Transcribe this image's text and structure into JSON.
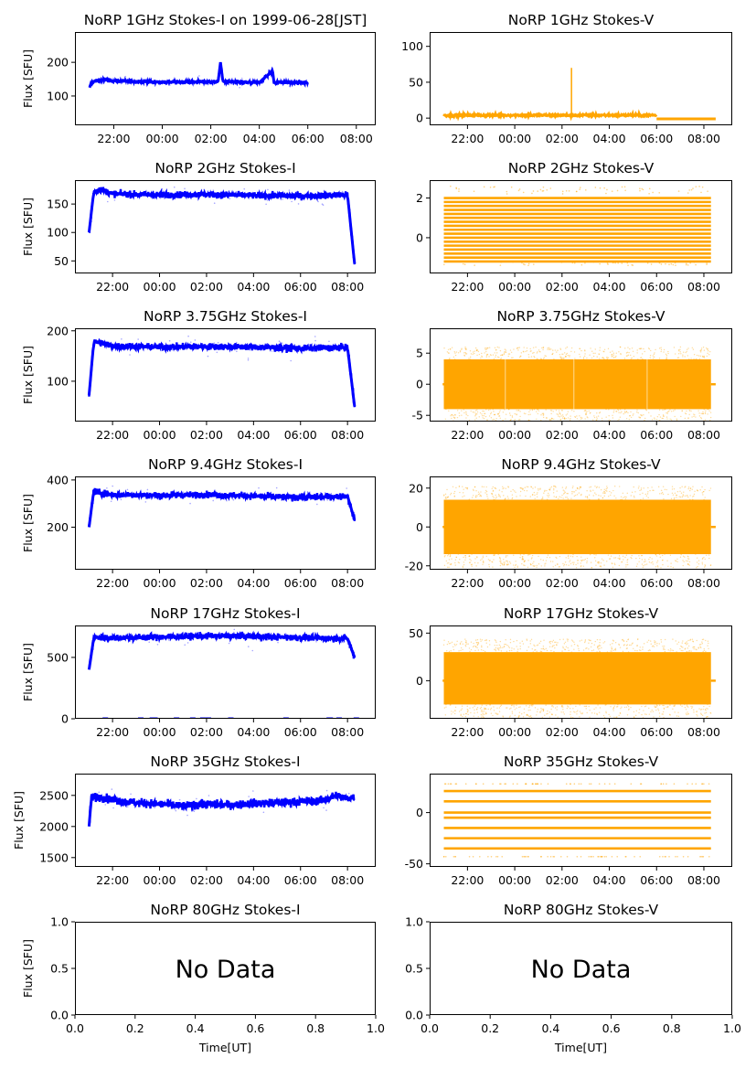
{
  "chart_data": [
    {
      "id": "1-I",
      "type": "scatter",
      "title": "NoRP 1GHz Stokes-I on 1999-06-28[JST]",
      "ylabel": "Flux [SFU]",
      "xlabel": "",
      "color": "#0000ff",
      "xlim": [
        20.4,
        32.8
      ],
      "ylim": [
        13,
        290
      ],
      "yticks": [
        100,
        200
      ],
      "xticks": [
        22,
        24,
        26,
        28,
        30,
        32
      ],
      "xtick_labels": [
        "22:00",
        "00:00",
        "02:00",
        "04:00",
        "06:00",
        "08:00"
      ],
      "series": [
        {
          "x": [
            21.0,
            21.1,
            21.6,
            22,
            23,
            24,
            25,
            26.3,
            26.4,
            26.5,
            27,
            28,
            28.55,
            28.6,
            29,
            30.0
          ],
          "y": [
            125,
            142,
            148,
            145,
            143,
            141,
            142,
            142,
            200,
            143,
            141,
            140,
            175,
            141,
            140,
            139
          ]
        }
      ]
    },
    {
      "id": "1-V",
      "type": "scatter",
      "title": "NoRP 1GHz Stokes-V",
      "ylabel": "",
      "xlabel": "",
      "color": "#ffa500",
      "xlim": [
        20.4,
        33.2
      ],
      "ylim": [
        -10,
        120
      ],
      "yticks": [
        0,
        50,
        100
      ],
      "xticks": [
        22,
        24,
        26,
        28,
        30,
        32
      ],
      "xtick_labels": [
        "22:00",
        "00:00",
        "02:00",
        "04:00",
        "06:00",
        "08:00"
      ],
      "series": [
        {
          "x": [
            21,
            22,
            24,
            26,
            26.4,
            26.5,
            28,
            30,
            30.1,
            32.5
          ],
          "y": [
            4,
            4,
            3,
            3,
            70,
            3,
            4,
            4,
            -1,
            -1
          ]
        }
      ]
    },
    {
      "id": "2-I",
      "type": "scatter",
      "title": "NoRP 2GHz Stokes-I",
      "ylabel": "Flux [SFU]",
      "xlabel": "",
      "color": "#0000ff",
      "xlim": [
        20.4,
        33.2
      ],
      "ylim": [
        28,
        192
      ],
      "yticks": [
        50,
        100,
        150
      ],
      "xticks": [
        22,
        24,
        26,
        28,
        30,
        32
      ],
      "xtick_labels": [
        "22:00",
        "00:00",
        "02:00",
        "04:00",
        "06:00",
        "08:00"
      ],
      "series": [
        {
          "x": [
            21,
            21.2,
            21.5,
            22,
            24,
            26,
            28,
            30,
            32,
            32.3
          ],
          "y": [
            100,
            172,
            176,
            168,
            166,
            167,
            165,
            164,
            166,
            45
          ]
        }
      ]
    },
    {
      "id": "2-V",
      "type": "scatter",
      "title": "NoRP 2GHz Stokes-V",
      "ylabel": "",
      "xlabel": "",
      "color": "#ffa500",
      "xlim": [
        20.4,
        33.2
      ],
      "ylim": [
        -1.8,
        2.9
      ],
      "yticks": [
        0,
        2
      ],
      "xticks": [
        22,
        24,
        26,
        28,
        30,
        32
      ],
      "xtick_labels": [
        "22:00",
        "00:00",
        "02:00",
        "04:00",
        "06:00",
        "08:00"
      ],
      "series": [
        {
          "x": [
            21,
            32.3
          ],
          "y": [
            -1.2,
            2.2
          ]
        }
      ]
    },
    {
      "id": "3-I",
      "type": "scatter",
      "title": "NoRP 3.75GHz Stokes-I",
      "ylabel": "Flux [SFU]",
      "xlabel": "",
      "color": "#0000ff",
      "xlim": [
        20.4,
        33.2
      ],
      "ylim": [
        20,
        205
      ],
      "yticks": [
        100,
        200
      ],
      "xticks": [
        22,
        24,
        26,
        28,
        30,
        32
      ],
      "xtick_labels": [
        "22:00",
        "00:00",
        "02:00",
        "04:00",
        "06:00",
        "08:00"
      ],
      "series": [
        {
          "x": [
            21,
            21.2,
            21.5,
            22,
            24,
            26,
            28,
            30,
            32,
            32.3
          ],
          "y": [
            72,
            178,
            176,
            170,
            168,
            169,
            168,
            165,
            167,
            50
          ]
        }
      ]
    },
    {
      "id": "3-V",
      "type": "scatter",
      "title": "NoRP 3.75GHz Stokes-V",
      "ylabel": "",
      "xlabel": "",
      "color": "#ffa500",
      "xlim": [
        20.4,
        33.2
      ],
      "ylim": [
        -6,
        9
      ],
      "yticks": [
        -5,
        0,
        5
      ],
      "xticks": [
        22,
        24,
        26,
        28,
        30,
        32
      ],
      "xtick_labels": [
        "22:00",
        "00:00",
        "02:00",
        "04:00",
        "06:00",
        "08:00"
      ],
      "series": [
        {
          "x": [
            21,
            32.3
          ],
          "y": [
            -4,
            4
          ]
        }
      ]
    },
    {
      "id": "9-I",
      "type": "scatter",
      "title": "NoRP 9.4GHz Stokes-I",
      "ylabel": "Flux [SFU]",
      "xlabel": "",
      "color": "#0000ff",
      "xlim": [
        20.4,
        33.2
      ],
      "ylim": [
        20,
        415
      ],
      "yticks": [
        200,
        400
      ],
      "xticks": [
        22,
        24,
        26,
        28,
        30,
        32
      ],
      "xtick_labels": [
        "22:00",
        "00:00",
        "02:00",
        "04:00",
        "06:00",
        "08:00"
      ],
      "series": [
        {
          "x": [
            21,
            21.2,
            21.5,
            22,
            24,
            26,
            28,
            30,
            32,
            32.3
          ],
          "y": [
            200,
            355,
            345,
            338,
            335,
            338,
            332,
            326,
            332,
            230
          ]
        }
      ]
    },
    {
      "id": "9-V",
      "type": "scatter",
      "title": "NoRP 9.4GHz Stokes-V",
      "ylabel": "",
      "xlabel": "",
      "color": "#ffa500",
      "xlim": [
        20.4,
        33.2
      ],
      "ylim": [
        -22,
        26
      ],
      "yticks": [
        -20,
        0,
        20
      ],
      "xticks": [
        22,
        24,
        26,
        28,
        30,
        32
      ],
      "xtick_labels": [
        "22:00",
        "00:00",
        "02:00",
        "04:00",
        "06:00",
        "08:00"
      ],
      "series": [
        {
          "x": [
            21,
            32.3
          ],
          "y": [
            -14,
            14
          ]
        }
      ]
    },
    {
      "id": "17-I",
      "type": "scatter",
      "title": "NoRP 17GHz Stokes-I",
      "ylabel": "Flux [SFU]",
      "xlabel": "",
      "color": "#0000ff",
      "xlim": [
        20.4,
        33.2
      ],
      "ylim": [
        0,
        760
      ],
      "yticks": [
        0,
        500
      ],
      "xticks": [
        22,
        24,
        26,
        28,
        30,
        32
      ],
      "xtick_labels": [
        "22:00",
        "00:00",
        "02:00",
        "04:00",
        "06:00",
        "08:00"
      ],
      "series": [
        {
          "x": [
            21,
            21.2,
            21.5,
            22,
            24,
            26,
            28,
            30,
            32,
            32.3
          ],
          "y": [
            400,
            660,
            665,
            660,
            665,
            675,
            672,
            660,
            655,
            500
          ]
        }
      ]
    },
    {
      "id": "17-V",
      "type": "scatter",
      "title": "NoRP 17GHz Stokes-V",
      "ylabel": "",
      "xlabel": "",
      "color": "#ffa500",
      "xlim": [
        20.4,
        33.2
      ],
      "ylim": [
        -40,
        58
      ],
      "yticks": [
        0,
        50
      ],
      "xticks": [
        22,
        24,
        26,
        28,
        30,
        32
      ],
      "xtick_labels": [
        "22:00",
        "00:00",
        "02:00",
        "04:00",
        "06:00",
        "08:00"
      ],
      "series": [
        {
          "x": [
            21,
            32.3
          ],
          "y": [
            -25,
            30
          ]
        }
      ]
    },
    {
      "id": "35-I",
      "type": "scatter",
      "title": "NoRP 35GHz Stokes-I",
      "ylabel": "Flux [SFU]",
      "xlabel": "",
      "color": "#0000ff",
      "xlim": [
        20.4,
        33.2
      ],
      "ylim": [
        1350,
        2850
      ],
      "yticks": [
        1500,
        2000,
        2500
      ],
      "xticks": [
        22,
        24,
        26,
        28,
        30,
        32
      ],
      "xtick_labels": [
        "22:00",
        "00:00",
        "02:00",
        "04:00",
        "06:00",
        "08:00"
      ],
      "series": [
        {
          "x": [
            21,
            21.1,
            21.5,
            22,
            23,
            24,
            25,
            26,
            27,
            28,
            29,
            30,
            31,
            31.5,
            32,
            32.3
          ],
          "y": [
            2000,
            2480,
            2470,
            2430,
            2380,
            2360,
            2330,
            2360,
            2350,
            2370,
            2380,
            2400,
            2420,
            2500,
            2450,
            2480
          ]
        }
      ]
    },
    {
      "id": "35-V",
      "type": "scatter",
      "title": "NoRP 35GHz Stokes-V",
      "ylabel": "",
      "xlabel": "",
      "color": "#ffa500",
      "xlim": [
        20.4,
        33.2
      ],
      "ylim": [
        -53,
        38
      ],
      "yticks": [
        -50,
        0
      ],
      "xticks": [
        22,
        24,
        26,
        28,
        30,
        32
      ],
      "xtick_labels": [
        "22:00",
        "00:00",
        "02:00",
        "04:00",
        "06:00",
        "08:00"
      ],
      "series": [
        {
          "x": [
            21,
            32.3
          ],
          "y": [
            -35,
            21
          ]
        }
      ]
    },
    {
      "id": "80-I",
      "type": "empty",
      "title": "NoRP 80GHz Stokes-I",
      "ylabel": "Flux [SFU]",
      "xlabel": "Time[UT]",
      "annotation": "No Data",
      "xlim": [
        0,
        1
      ],
      "ylim": [
        0,
        1
      ],
      "yticks": [
        0,
        0.5,
        1.0
      ],
      "ytick_labels": [
        "0.0",
        "0.5",
        "1.0"
      ],
      "xticks": [
        0,
        0.2,
        0.4,
        0.6,
        0.8,
        1.0
      ],
      "xtick_labels": [
        "0.0",
        "0.2",
        "0.4",
        "0.6",
        "0.8",
        "1.0"
      ]
    },
    {
      "id": "80-V",
      "type": "empty",
      "title": "NoRP 80GHz Stokes-V",
      "ylabel": "",
      "xlabel": "Time[UT]",
      "annotation": "No Data",
      "xlim": [
        0,
        1
      ],
      "ylim": [
        0,
        1
      ],
      "yticks": [
        0,
        0.5,
        1.0
      ],
      "ytick_labels": [
        "0.0",
        "0.5",
        "1.0"
      ],
      "xticks": [
        0,
        0.2,
        0.4,
        0.6,
        0.8,
        1.0
      ],
      "xtick_labels": [
        "0.0",
        "0.2",
        "0.4",
        "0.6",
        "0.8",
        "1.0"
      ]
    }
  ]
}
